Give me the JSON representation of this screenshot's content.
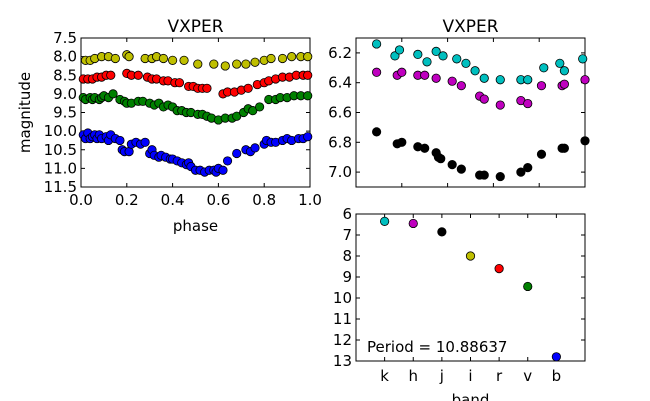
{
  "chart_data": [
    {
      "type": "scatter",
      "title": "VXPER",
      "xlabel": "phase",
      "ylabel": "magnitude",
      "xlim": [
        0.0,
        1.0
      ],
      "ylim": [
        11.5,
        7.5
      ],
      "y_inverted": true,
      "xticks": [
        "0.0",
        "0.2",
        "0.4",
        "0.6",
        "0.8",
        "1.0"
      ],
      "yticks": [
        "7.5",
        "8.0",
        "8.5",
        "9.0",
        "9.5",
        "10.0",
        "10.5",
        "11.0",
        "11.5"
      ],
      "series": [
        {
          "color": "#bfbf00",
          "points": [
            [
              0.02,
              8.1
            ],
            [
              0.04,
              8.1
            ],
            [
              0.06,
              8.05
            ],
            [
              0.09,
              8.0
            ],
            [
              0.12,
              8.0
            ],
            [
              0.15,
              8.05
            ],
            [
              0.2,
              7.95
            ],
            [
              0.21,
              8.0
            ],
            [
              0.28,
              8.05
            ],
            [
              0.31,
              8.05
            ],
            [
              0.33,
              8.0
            ],
            [
              0.36,
              8.05
            ],
            [
              0.4,
              8.1
            ],
            [
              0.45,
              8.1
            ],
            [
              0.51,
              8.2
            ],
            [
              0.58,
              8.2
            ],
            [
              0.63,
              8.25
            ],
            [
              0.68,
              8.2
            ],
            [
              0.72,
              8.2
            ],
            [
              0.76,
              8.15
            ],
            [
              0.8,
              8.1
            ],
            [
              0.83,
              8.05
            ],
            [
              0.88,
              8.05
            ],
            [
              0.92,
              8.0
            ],
            [
              0.96,
              8.0
            ],
            [
              0.99,
              8.0
            ]
          ]
        },
        {
          "color": "#ff0000",
          "points": [
            [
              0.01,
              8.6
            ],
            [
              0.03,
              8.6
            ],
            [
              0.05,
              8.6
            ],
            [
              0.07,
              8.55
            ],
            [
              0.09,
              8.55
            ],
            [
              0.11,
              8.5
            ],
            [
              0.13,
              8.5
            ],
            [
              0.2,
              8.45
            ],
            [
              0.22,
              8.5
            ],
            [
              0.25,
              8.5
            ],
            [
              0.29,
              8.55
            ],
            [
              0.31,
              8.6
            ],
            [
              0.33,
              8.6
            ],
            [
              0.36,
              8.65
            ],
            [
              0.38,
              8.65
            ],
            [
              0.41,
              8.7
            ],
            [
              0.43,
              8.7
            ],
            [
              0.47,
              8.8
            ],
            [
              0.49,
              8.8
            ],
            [
              0.51,
              8.85
            ],
            [
              0.53,
              8.85
            ],
            [
              0.55,
              8.85
            ],
            [
              0.62,
              9.0
            ],
            [
              0.64,
              8.95
            ],
            [
              0.67,
              8.95
            ],
            [
              0.7,
              8.9
            ],
            [
              0.73,
              8.85
            ],
            [
              0.77,
              8.75
            ],
            [
              0.8,
              8.7
            ],
            [
              0.82,
              8.65
            ],
            [
              0.85,
              8.6
            ],
            [
              0.88,
              8.55
            ],
            [
              0.91,
              8.55
            ],
            [
              0.94,
              8.5
            ],
            [
              0.97,
              8.5
            ],
            [
              0.99,
              8.5
            ]
          ]
        },
        {
          "color": "#008000",
          "points": [
            [
              0.01,
              9.1
            ],
            [
              0.02,
              9.15
            ],
            [
              0.04,
              9.1
            ],
            [
              0.05,
              9.15
            ],
            [
              0.06,
              9.1
            ],
            [
              0.08,
              9.15
            ],
            [
              0.09,
              9.1
            ],
            [
              0.1,
              9.05
            ],
            [
              0.12,
              9.1
            ],
            [
              0.14,
              9.0
            ],
            [
              0.17,
              9.15
            ],
            [
              0.19,
              9.2
            ],
            [
              0.2,
              9.25
            ],
            [
              0.22,
              9.25
            ],
            [
              0.25,
              9.2
            ],
            [
              0.27,
              9.2
            ],
            [
              0.3,
              9.25
            ],
            [
              0.32,
              9.3
            ],
            [
              0.34,
              9.25
            ],
            [
              0.36,
              9.35
            ],
            [
              0.38,
              9.3
            ],
            [
              0.4,
              9.35
            ],
            [
              0.42,
              9.45
            ],
            [
              0.44,
              9.45
            ],
            [
              0.46,
              9.5
            ],
            [
              0.48,
              9.5
            ],
            [
              0.51,
              9.55
            ],
            [
              0.53,
              9.55
            ],
            [
              0.55,
              9.6
            ],
            [
              0.57,
              9.65
            ],
            [
              0.6,
              9.7
            ],
            [
              0.63,
              9.65
            ],
            [
              0.66,
              9.65
            ],
            [
              0.68,
              9.6
            ],
            [
              0.71,
              9.5
            ],
            [
              0.73,
              9.4
            ],
            [
              0.75,
              9.45
            ],
            [
              0.78,
              9.35
            ],
            [
              0.82,
              9.15
            ],
            [
              0.85,
              9.15
            ],
            [
              0.87,
              9.1
            ],
            [
              0.9,
              9.1
            ],
            [
              0.93,
              9.05
            ],
            [
              0.96,
              9.05
            ],
            [
              0.99,
              9.05
            ]
          ]
        },
        {
          "color": "#0000ff",
          "points": [
            [
              0.01,
              10.1
            ],
            [
              0.02,
              10.2
            ],
            [
              0.03,
              10.05
            ],
            [
              0.04,
              10.2
            ],
            [
              0.05,
              10.15
            ],
            [
              0.06,
              10.1
            ],
            [
              0.07,
              10.2
            ],
            [
              0.08,
              10.1
            ],
            [
              0.09,
              10.2
            ],
            [
              0.11,
              10.15
            ],
            [
              0.12,
              10.25
            ],
            [
              0.13,
              10.1
            ],
            [
              0.15,
              10.2
            ],
            [
              0.17,
              10.25
            ],
            [
              0.18,
              10.5
            ],
            [
              0.19,
              10.55
            ],
            [
              0.21,
              10.55
            ],
            [
              0.22,
              10.35
            ],
            [
              0.24,
              10.3
            ],
            [
              0.26,
              10.35
            ],
            [
              0.28,
              10.3
            ],
            [
              0.3,
              10.6
            ],
            [
              0.31,
              10.5
            ],
            [
              0.32,
              10.65
            ],
            [
              0.34,
              10.7
            ],
            [
              0.35,
              10.65
            ],
            [
              0.37,
              10.7
            ],
            [
              0.39,
              10.75
            ],
            [
              0.4,
              10.75
            ],
            [
              0.42,
              10.8
            ],
            [
              0.44,
              10.85
            ],
            [
              0.46,
              10.9
            ],
            [
              0.47,
              10.85
            ],
            [
              0.48,
              10.95
            ],
            [
              0.5,
              11.05
            ],
            [
              0.52,
              11.05
            ],
            [
              0.54,
              11.1
            ],
            [
              0.56,
              11.05
            ],
            [
              0.58,
              11.05
            ],
            [
              0.59,
              11.1
            ],
            [
              0.6,
              11.0
            ],
            [
              0.62,
              11.05
            ],
            [
              0.64,
              10.8
            ],
            [
              0.68,
              10.6
            ],
            [
              0.72,
              10.5
            ],
            [
              0.74,
              10.55
            ],
            [
              0.76,
              10.45
            ],
            [
              0.8,
              10.35
            ],
            [
              0.81,
              10.25
            ],
            [
              0.83,
              10.3
            ],
            [
              0.85,
              10.3
            ],
            [
              0.88,
              10.25
            ],
            [
              0.9,
              10.2
            ],
            [
              0.92,
              10.25
            ],
            [
              0.95,
              10.2
            ],
            [
              0.97,
              10.2
            ],
            [
              0.99,
              10.15
            ]
          ]
        }
      ]
    },
    {
      "type": "scatter",
      "title": "VXPER",
      "xlim": [
        0.0,
        1.0
      ],
      "ylim": [
        7.1,
        6.1
      ],
      "y_inverted": true,
      "yticks": [
        "6.2",
        "6.4",
        "6.6",
        "6.8",
        "7.0"
      ],
      "series": [
        {
          "color": "#00bfbf",
          "points": [
            [
              0.09,
              6.14
            ],
            [
              0.17,
              6.22
            ],
            [
              0.19,
              6.18
            ],
            [
              0.27,
              6.21
            ],
            [
              0.31,
              6.26
            ],
            [
              0.35,
              6.19
            ],
            [
              0.38,
              6.22
            ],
            [
              0.44,
              6.24
            ],
            [
              0.48,
              6.27
            ],
            [
              0.52,
              6.32
            ],
            [
              0.56,
              6.37
            ],
            [
              0.63,
              6.38
            ],
            [
              0.72,
              6.38
            ],
            [
              0.75,
              6.38
            ],
            [
              0.82,
              6.3
            ],
            [
              0.89,
              6.27
            ],
            [
              0.91,
              6.32
            ],
            [
              0.99,
              6.24
            ]
          ]
        },
        {
          "color": "#bf00bf",
          "points": [
            [
              0.09,
              6.33
            ],
            [
              0.18,
              6.35
            ],
            [
              0.2,
              6.33
            ],
            [
              0.27,
              6.35
            ],
            [
              0.3,
              6.35
            ],
            [
              0.35,
              6.37
            ],
            [
              0.42,
              6.39
            ],
            [
              0.46,
              6.42
            ],
            [
              0.54,
              6.49
            ],
            [
              0.56,
              6.51
            ],
            [
              0.63,
              6.55
            ],
            [
              0.72,
              6.52
            ],
            [
              0.75,
              6.54
            ],
            [
              0.81,
              6.42
            ],
            [
              0.9,
              6.42
            ],
            [
              0.91,
              6.41
            ],
            [
              1.0,
              6.38
            ]
          ]
        },
        {
          "color": "#000000",
          "points": [
            [
              0.09,
              6.73
            ],
            [
              0.18,
              6.81
            ],
            [
              0.2,
              6.8
            ],
            [
              0.27,
              6.83
            ],
            [
              0.3,
              6.84
            ],
            [
              0.35,
              6.87
            ],
            [
              0.36,
              6.9
            ],
            [
              0.37,
              6.91
            ],
            [
              0.42,
              6.95
            ],
            [
              0.46,
              6.98
            ],
            [
              0.54,
              7.02
            ],
            [
              0.56,
              7.02
            ],
            [
              0.63,
              7.03
            ],
            [
              0.72,
              7.0
            ],
            [
              0.75,
              6.97
            ],
            [
              0.81,
              6.88
            ],
            [
              0.9,
              6.84
            ],
            [
              0.91,
              6.84
            ],
            [
              1.0,
              6.79
            ]
          ]
        }
      ]
    },
    {
      "type": "scatter",
      "xlabel": "band",
      "ylim": [
        13,
        6
      ],
      "y_inverted": true,
      "yticks": [
        "6",
        "7",
        "8",
        "9",
        "10",
        "11",
        "12",
        "13"
      ],
      "categories": [
        "k",
        "h",
        "j",
        "i",
        "r",
        "v",
        "b"
      ],
      "points": [
        {
          "band": "k",
          "value": 6.35,
          "color": "#00bfbf"
        },
        {
          "band": "h",
          "value": 6.45,
          "color": "#bf00bf"
        },
        {
          "band": "j",
          "value": 6.85,
          "color": "#000000"
        },
        {
          "band": "i",
          "value": 8.0,
          "color": "#bfbf00"
        },
        {
          "band": "r",
          "value": 8.6,
          "color": "#ff0000"
        },
        {
          "band": "v",
          "value": 9.45,
          "color": "#008000"
        },
        {
          "band": "b",
          "value": 12.8,
          "color": "#0000ff"
        }
      ],
      "annotation": "Period = 10.88637"
    }
  ]
}
